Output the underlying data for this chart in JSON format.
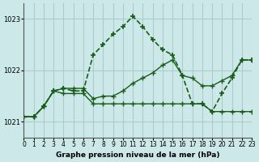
{
  "title": "Graphe pression niveau de la mer (hPa)",
  "xlabel": "Graphe pression niveau de la mer (hPa)",
  "ylim": [
    1020.7,
    1023.3
  ],
  "xlim": [
    0,
    23
  ],
  "yticks": [
    1021,
    1022,
    1023
  ],
  "xticks": [
    0,
    1,
    2,
    3,
    4,
    5,
    6,
    7,
    8,
    9,
    10,
    11,
    12,
    13,
    14,
    15,
    16,
    17,
    18,
    19,
    20,
    21,
    22,
    23
  ],
  "bg_color": "#cce8e8",
  "grid_color": "#aacccc",
  "line_color": "#1a5c1a",
  "line1": {
    "x": [
      0,
      1,
      2,
      3,
      4,
      5,
      6,
      7,
      8,
      9,
      10,
      11,
      12,
      13,
      14,
      15,
      16,
      17,
      18,
      19,
      20,
      21,
      22,
      23
    ],
    "y": [
      1021.1,
      1021.1,
      1021.3,
      1021.6,
      1021.55,
      1021.55,
      1021.55,
      1021.35,
      1021.35,
      1021.35,
      1021.35,
      1021.35,
      1021.35,
      1021.35,
      1021.35,
      1021.35,
      1021.35,
      1021.35,
      1021.35,
      1021.2,
      1021.2,
      1021.2,
      1021.2,
      1021.2
    ]
  },
  "line2": {
    "x": [
      0,
      1,
      2,
      3,
      4,
      5,
      6,
      7,
      8,
      9,
      10,
      11,
      12,
      13,
      14,
      15,
      16,
      17,
      18,
      19,
      20,
      21,
      22,
      23
    ],
    "y": [
      1021.1,
      1021.1,
      1021.3,
      1021.6,
      1021.65,
      1021.65,
      1021.65,
      1021.45,
      1021.5,
      1021.5,
      1021.6,
      1021.75,
      1021.85,
      1021.95,
      1022.1,
      1022.2,
      1021.9,
      1021.85,
      1021.7,
      1021.7,
      1021.8,
      1021.9,
      1022.2,
      1022.2
    ]
  },
  "line3": {
    "x": [
      0,
      1,
      2,
      3,
      4,
      5,
      6,
      7,
      8,
      9,
      10,
      11,
      12,
      13,
      14,
      15,
      16,
      17,
      18,
      19,
      20,
      21,
      22,
      23
    ],
    "y": [
      1021.1,
      1021.1,
      1021.3,
      1021.6,
      1021.65,
      1021.6,
      1021.6,
      1022.3,
      1022.5,
      1022.7,
      1022.85,
      1023.05,
      1022.85,
      1022.6,
      1022.4,
      1022.3,
      1021.9,
      1021.35,
      1021.35,
      1021.2,
      1021.55,
      1021.85,
      1022.2,
      1022.2
    ]
  }
}
